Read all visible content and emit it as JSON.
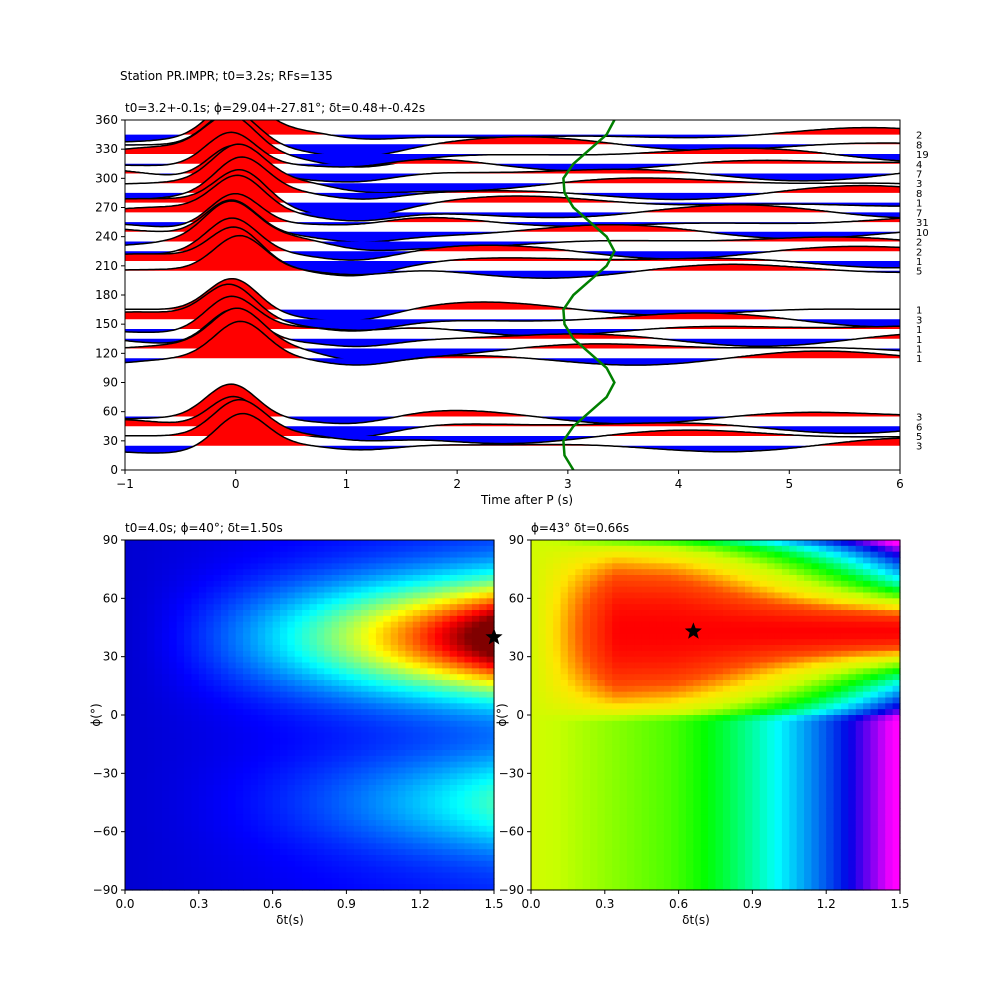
{
  "suptitle": "Station PR.IMPR; t0=3.2s; RFs=135",
  "chart_data": [
    {
      "type": "wiggle",
      "title": "t0=3.2+-0.1s; ϕ=29.04+-27.81°; δt=0.48+-0.42s",
      "xlabel": "Time after P (s)",
      "ylabel": "",
      "xlim": [
        -1,
        6
      ],
      "ylim": [
        0,
        360
      ],
      "xticks": [
        -1,
        0,
        1,
        2,
        3,
        4,
        5,
        6
      ],
      "yticks": [
        0,
        30,
        60,
        90,
        120,
        150,
        180,
        210,
        240,
        270,
        300,
        330,
        360
      ],
      "positive_fill": "#ff0000",
      "negative_fill": "#0000ff",
      "traces": [
        {
          "baz": 345,
          "count": "2"
        },
        {
          "baz": 335,
          "count": "8"
        },
        {
          "baz": 325,
          "count": "19"
        },
        {
          "baz": 315,
          "count": "4"
        },
        {
          "baz": 305,
          "count": "7"
        },
        {
          "baz": 295,
          "count": "3"
        },
        {
          "baz": 285,
          "count": "8"
        },
        {
          "baz": 275,
          "count": "1"
        },
        {
          "baz": 265,
          "count": "7"
        },
        {
          "baz": 255,
          "count": "31"
        },
        {
          "baz": 245,
          "count": "10"
        },
        {
          "baz": 235,
          "count": "2"
        },
        {
          "baz": 225,
          "count": "2"
        },
        {
          "baz": 215,
          "count": "1"
        },
        {
          "baz": 205,
          "count": "5"
        },
        {
          "baz": 165,
          "count": "1"
        },
        {
          "baz": 155,
          "count": "3"
        },
        {
          "baz": 145,
          "count": "1"
        },
        {
          "baz": 135,
          "count": "1"
        },
        {
          "baz": 125,
          "count": "1"
        },
        {
          "baz": 115,
          "count": "1"
        },
        {
          "baz": 55,
          "count": "3"
        },
        {
          "baz": 45,
          "count": "6"
        },
        {
          "baz": 35,
          "count": "5"
        },
        {
          "baz": 25,
          "count": "3"
        }
      ],
      "predicted_ps_curve": {
        "color": "#008000",
        "points": [
          [
            3.05,
            0
          ],
          [
            2.97,
            15
          ],
          [
            2.96,
            30
          ],
          [
            3.05,
            45
          ],
          [
            3.2,
            60
          ],
          [
            3.35,
            75
          ],
          [
            3.42,
            90
          ],
          [
            3.35,
            105
          ],
          [
            3.2,
            120
          ],
          [
            3.05,
            135
          ],
          [
            2.97,
            150
          ],
          [
            2.96,
            165
          ],
          [
            3.05,
            180
          ],
          [
            3.2,
            195
          ],
          [
            3.35,
            210
          ],
          [
            3.42,
            225
          ],
          [
            3.35,
            240
          ],
          [
            3.2,
            255
          ],
          [
            3.05,
            270
          ],
          [
            2.97,
            285
          ],
          [
            2.96,
            300
          ],
          [
            3.05,
            315
          ],
          [
            3.2,
            330
          ],
          [
            3.35,
            345
          ],
          [
            3.42,
            360
          ]
        ]
      }
    },
    {
      "type": "heatmap",
      "title": "t0=4.0s; ϕ=40°; δt=1.50s",
      "xlabel": "δt(s)",
      "ylabel": "ϕ(°)",
      "xlim": [
        0,
        1.5
      ],
      "ylim": [
        -90,
        90
      ],
      "xticks": [
        "0.0",
        "0.3",
        "0.6",
        "0.9",
        "1.2",
        "1.5"
      ],
      "yticks": [
        "90",
        "60",
        "30",
        "0",
        "−30",
        "−60",
        "−90"
      ],
      "colormap": "jet",
      "best": {
        "dt": 1.5,
        "phi": 40
      }
    },
    {
      "type": "heatmap",
      "title": "ϕ=43° δt=0.66s",
      "xlabel": "δt(s)",
      "ylabel": "ϕ(°)",
      "xlim": [
        0,
        1.5
      ],
      "ylim": [
        -90,
        90
      ],
      "xticks": [
        "0.0",
        "0.3",
        "0.6",
        "0.9",
        "1.2",
        "1.5"
      ],
      "yticks": [
        "90",
        "60",
        "30",
        "0",
        "−30",
        "−60",
        "−90"
      ],
      "colormap": "gist_ncar",
      "best": {
        "dt": 0.66,
        "phi": 43
      }
    }
  ]
}
